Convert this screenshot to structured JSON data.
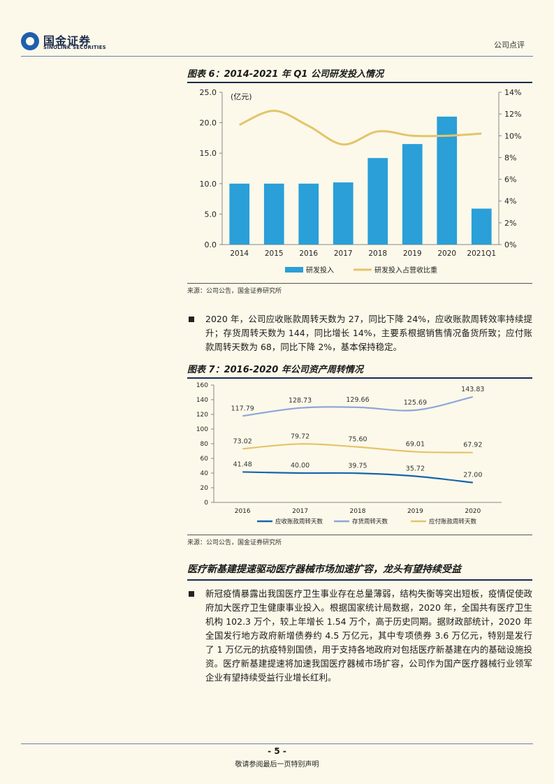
{
  "header": {
    "logo_cn": "国金证券",
    "logo_en": "SINOLINK SECURITIES",
    "doc_type": "公司点评"
  },
  "figure6": {
    "title": "图表 6：2014-2021 年 Q1 公司研发投入情况",
    "source": "来源：公司公告，国金证券研究所"
  },
  "chart_data": [
    {
      "type": "bar",
      "title": "",
      "unit_label": "(亿元)",
      "categories": [
        "2014",
        "2015",
        "2016",
        "2017",
        "2018",
        "2019",
        "2020",
        "2021Q1"
      ],
      "series": [
        {
          "name": "研发投入",
          "color": "#2a9fd8",
          "axis": "left",
          "values": [
            10.0,
            10.0,
            10.0,
            10.2,
            14.2,
            16.5,
            21.0,
            5.9
          ]
        },
        {
          "name": "研发投入占营收比重",
          "color": "#e4c46a",
          "axis": "right",
          "kind": "line",
          "values": [
            11.0,
            12.3,
            10.9,
            9.2,
            10.4,
            10.0,
            10.0,
            10.2
          ]
        }
      ],
      "ylim": [
        0,
        25
      ],
      "yticks": [
        "0.0",
        "5.0",
        "10.0",
        "15.0",
        "20.0",
        "25.0"
      ],
      "y2lim": [
        0,
        14
      ],
      "y2ticks": [
        "0%",
        "2%",
        "4%",
        "6%",
        "8%",
        "10%",
        "12%",
        "14%"
      ],
      "legend_position": "bottom"
    },
    {
      "type": "line",
      "title": "",
      "categories": [
        "2016",
        "2017",
        "2018",
        "2019",
        "2020"
      ],
      "series": [
        {
          "name": "应收账款周转天数",
          "color": "#1565b0",
          "values": [
            41.48,
            40.0,
            39.75,
            35.72,
            27.0
          ],
          "labels": [
            "41.48",
            "40.00",
            "39.75",
            "35.72",
            "27.00"
          ]
        },
        {
          "name": "存货周转天数",
          "color": "#8ea6db",
          "values": [
            117.79,
            128.73,
            129.66,
            125.69,
            143.83
          ],
          "labels": [
            "117.79",
            "128.73",
            "129.66",
            "125.69",
            "143.83"
          ]
        },
        {
          "name": "应付账款周转天数",
          "color": "#e4c46a",
          "values": [
            73.02,
            79.72,
            75.6,
            69.01,
            67.92
          ],
          "labels": [
            "73.02",
            "79.72",
            "75.60",
            "69.01",
            "67.92"
          ]
        }
      ],
      "ylim": [
        0,
        160
      ],
      "yticks": [
        "0",
        "20",
        "40",
        "60",
        "80",
        "100",
        "120",
        "140",
        "160"
      ],
      "legend_position": "bottom"
    }
  ],
  "paragraph1": "2020 年，公司应收账款周转天数为 27，同比下降 24%，应收账款周转效率持续提升；存货周转天数为 144，同比增长 14%，主要系根据销售情况备货所致；应付账款周转天数为 68，同比下降 2%，基本保持稳定。",
  "figure7": {
    "title": "图表 7：2016-2020 年公司资产周转情况",
    "source": "来源：公司公告，国金证券研究所"
  },
  "section": {
    "title": "医疗新基建提速驱动医疗器械市场加速扩容，龙头有望持续受益",
    "paragraph": "新冠疫情暴露出我国医疗卫生事业存在总量薄弱，结构失衡等突出短板，疫情促使政府加大医疗卫生健康事业投入。根据国家统计局数据，2020 年，全国共有医疗卫生机构 102.3 万个，较上年增长 1.54 万个，高于历史同期。据财政部统计，2020 年全国发行地方政府新增债券约 4.5 万亿元，其中专项债券 3.6 万亿元，特别是发行了 1 万亿元的抗疫特别国债，用于支持各地政府对包括医疗新基建在内的基础设施投资。医疗新基建提速将加速我国医疗器械市场扩容，公司作为国产医疗器械行业领军企业有望持续受益行业增长红利。"
  },
  "footer": {
    "page": "- 5 -",
    "note": "敬请参阅最后一页特别声明"
  }
}
